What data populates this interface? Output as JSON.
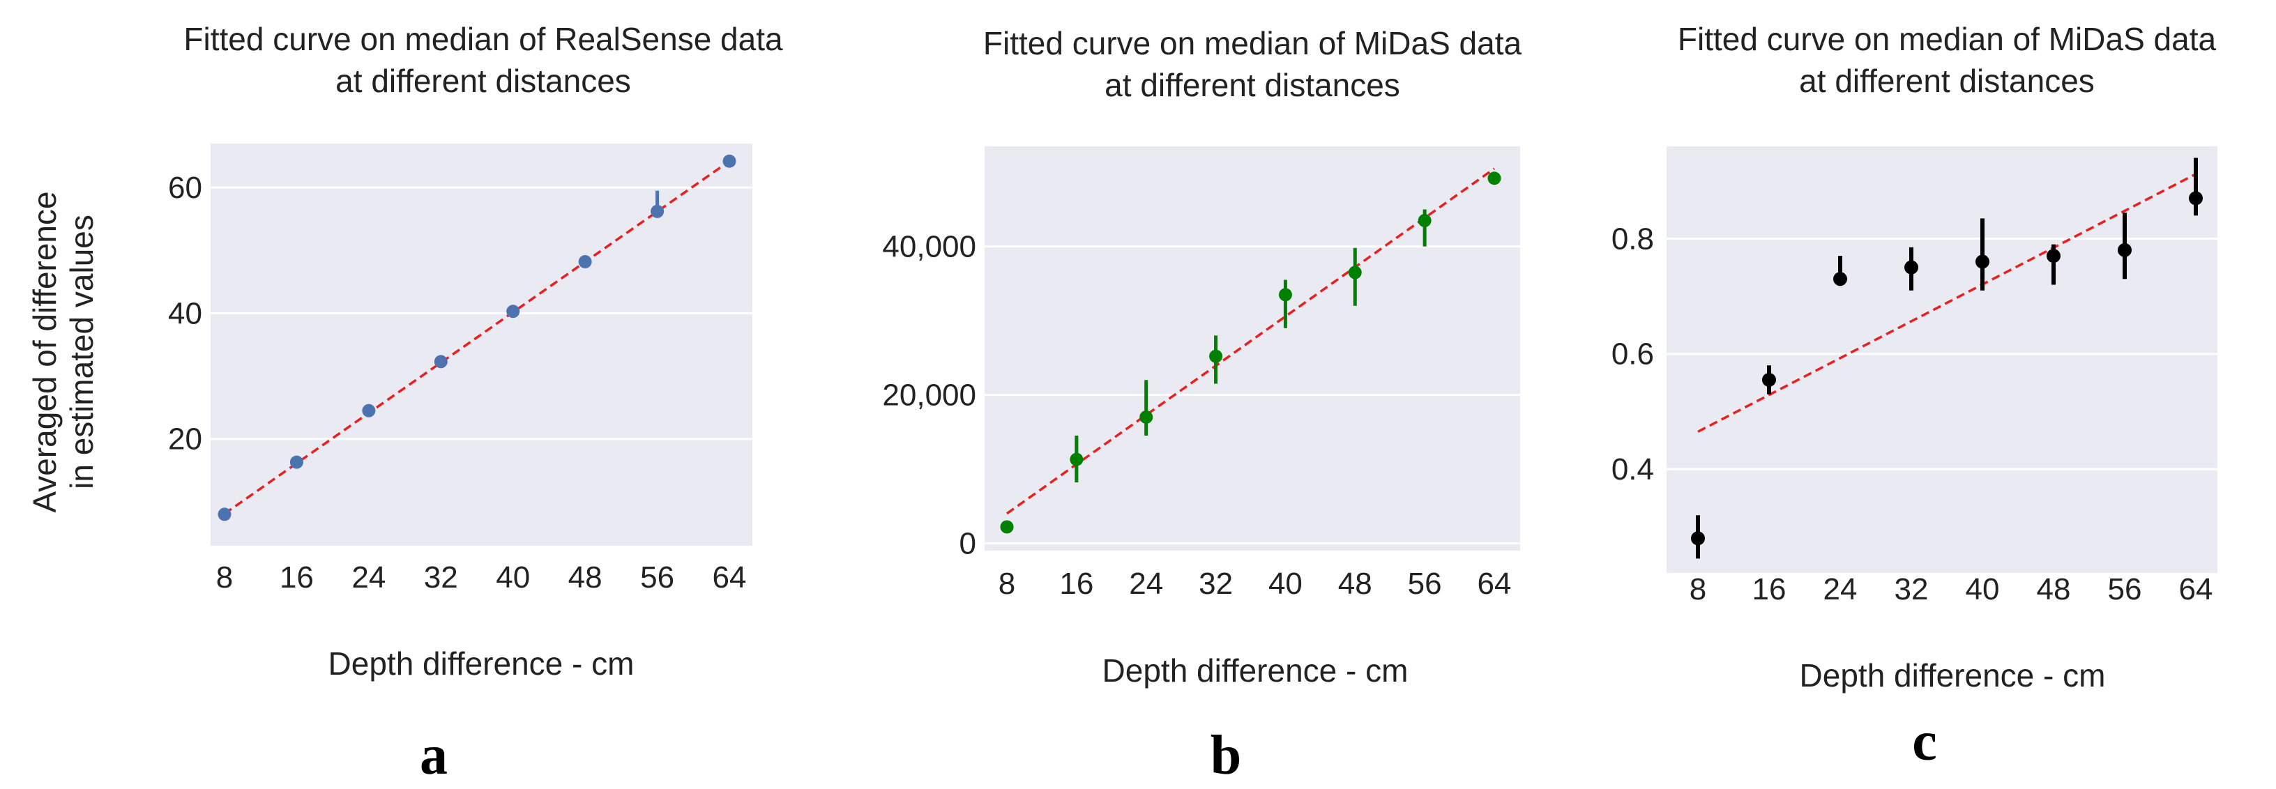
{
  "chart_data": [
    {
      "type": "scatter",
      "title": [
        "Fitted curve on median of RealSense data",
        "at different distances"
      ],
      "xlabel": "Depth difference - cm",
      "ylabel": [
        "Averaged of difference",
        "in estimated values"
      ],
      "categories": [
        "8",
        "16",
        "24",
        "32",
        "40",
        "48",
        "56",
        "64"
      ],
      "ylim": [
        3,
        67
      ],
      "yticks": [
        20,
        40,
        60
      ],
      "ytick_labels": [
        "20",
        "40",
        "60"
      ],
      "series": [
        {
          "name": "median",
          "color": "#4c72b0",
          "values": [
            8,
            16.3,
            24.5,
            32.3,
            40.3,
            48.2,
            56.2,
            64.2
          ],
          "err_low": [
            8,
            16.3,
            24.5,
            32.3,
            40.3,
            48.2,
            55.6,
            64.2
          ],
          "err_high": [
            8,
            16.3,
            24.5,
            32.3,
            40.3,
            48.2,
            59.5,
            64.2
          ]
        }
      ],
      "fit": {
        "start": [
          8,
          8.1
        ],
        "end": [
          64,
          64.2
        ],
        "color": "#e8201f"
      },
      "panel_label": "a"
    },
    {
      "type": "scatter",
      "title": [
        "Fitted curve on median of MiDaS data",
        "at different distances"
      ],
      "xlabel": "Depth difference - cm",
      "ylabel": [
        "",
        ""
      ],
      "categories": [
        "8",
        "16",
        "24",
        "32",
        "40",
        "48",
        "56",
        "64"
      ],
      "ylim": [
        -1000,
        53500
      ],
      "yticks": [
        0,
        20000,
        40000
      ],
      "ytick_labels": [
        "0",
        "20,000",
        "40,000"
      ],
      "series": [
        {
          "name": "median",
          "color": "#008000",
          "values": [
            2200,
            11300,
            17000,
            25200,
            33500,
            36500,
            43500,
            49200
          ],
          "err_low": [
            2200,
            8200,
            14500,
            21500,
            29000,
            32000,
            40000,
            49200
          ],
          "err_high": [
            2200,
            14500,
            22000,
            28000,
            35500,
            39800,
            45000,
            49200
          ]
        }
      ],
      "fit": {
        "start": [
          8,
          4000
        ],
        "end": [
          64,
          50500
        ],
        "color": "#e8201f"
      },
      "panel_label": "b"
    },
    {
      "type": "scatter",
      "title": [
        "Fitted curve on median of MiDaS data",
        "at different distances"
      ],
      "xlabel": "Depth difference - cm",
      "ylabel": [
        "",
        ""
      ],
      "categories": [
        "8",
        "16",
        "24",
        "32",
        "40",
        "48",
        "56",
        "64"
      ],
      "ylim": [
        0.22,
        0.96
      ],
      "yticks": [
        0.4,
        0.6,
        0.8
      ],
      "ytick_labels": [
        "0.4",
        "0.6",
        "0.8"
      ],
      "series": [
        {
          "name": "median",
          "color": "#000000",
          "values": [
            0.28,
            0.555,
            0.73,
            0.75,
            0.76,
            0.77,
            0.78,
            0.87
          ],
          "err_low": [
            0.245,
            0.53,
            0.73,
            0.71,
            0.71,
            0.72,
            0.73,
            0.84
          ],
          "err_high": [
            0.32,
            0.58,
            0.77,
            0.785,
            0.835,
            0.79,
            0.845,
            0.94
          ]
        }
      ],
      "fit": {
        "start": [
          8,
          0.465
        ],
        "end": [
          64,
          0.912
        ],
        "color": "#e8201f"
      },
      "panel_label": "c"
    }
  ]
}
